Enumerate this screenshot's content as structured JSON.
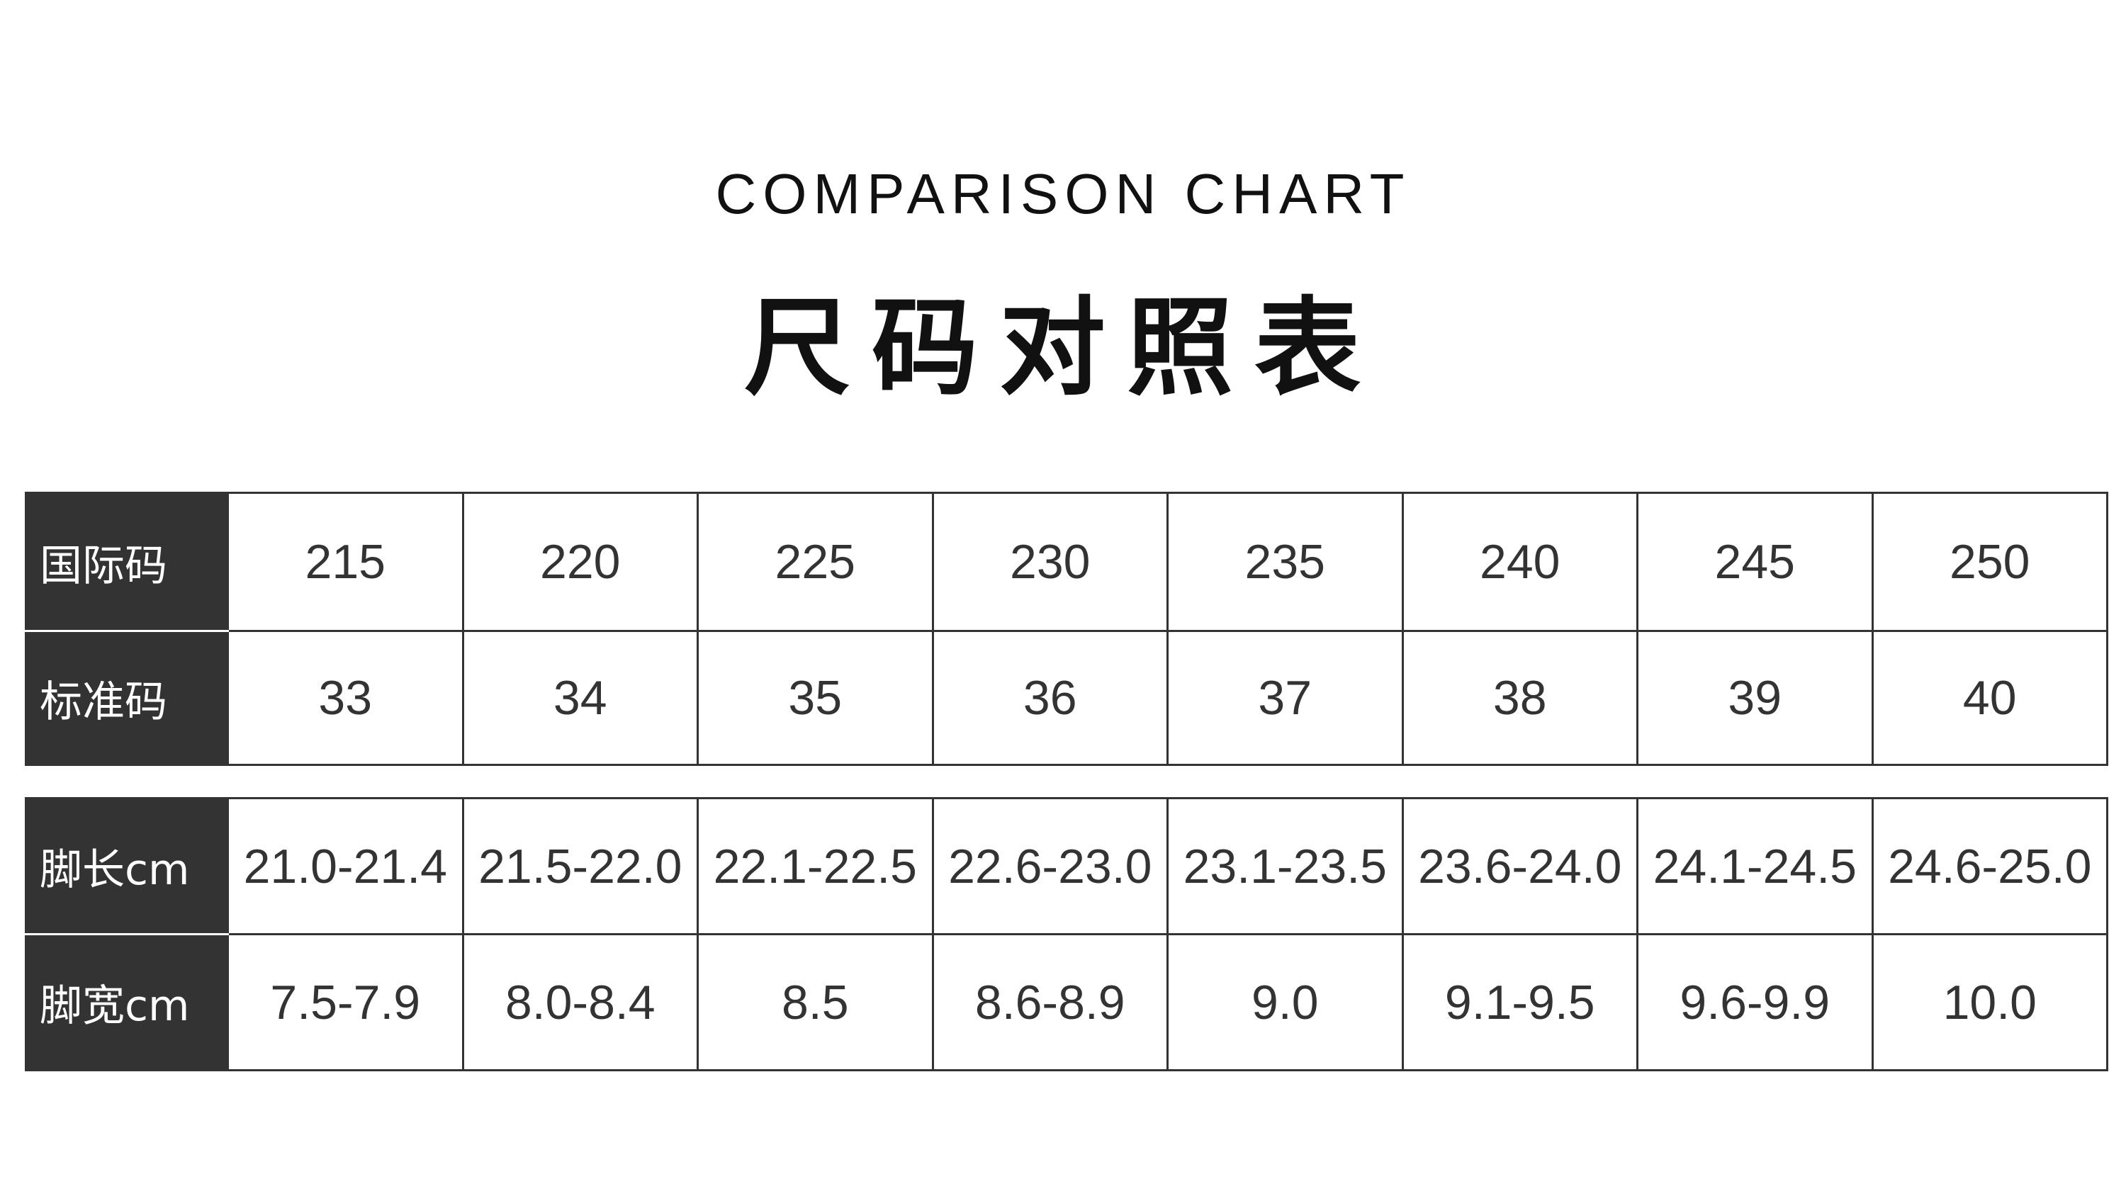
{
  "header": {
    "subtitle": "COMPARISON CHART",
    "title": "尺码对照表"
  },
  "table1": {
    "rows": [
      {
        "label": "国际码",
        "values": [
          "215",
          "220",
          "225",
          "230",
          "235",
          "240",
          "245",
          "250"
        ]
      },
      {
        "label": "标准码",
        "values": [
          "33",
          "34",
          "35",
          "36",
          "37",
          "38",
          "39",
          "40"
        ]
      }
    ]
  },
  "table2": {
    "rows": [
      {
        "label": "脚长cm",
        "values": [
          "21.0-21.4",
          "21.5-22.0",
          "22.1-22.5",
          "22.6-23.0",
          "23.1-23.5",
          "23.6-24.0",
          "24.1-24.5",
          "24.6-25.0"
        ]
      },
      {
        "label": "脚宽cm",
        "values": [
          "7.5-7.9",
          "8.0-8.4",
          "8.5",
          "8.6-8.9",
          "9.0",
          "9.1-9.5",
          "9.6-9.9",
          "10.0"
        ]
      }
    ]
  },
  "colors": {
    "header_bg": "#333333",
    "text": "#333333"
  }
}
